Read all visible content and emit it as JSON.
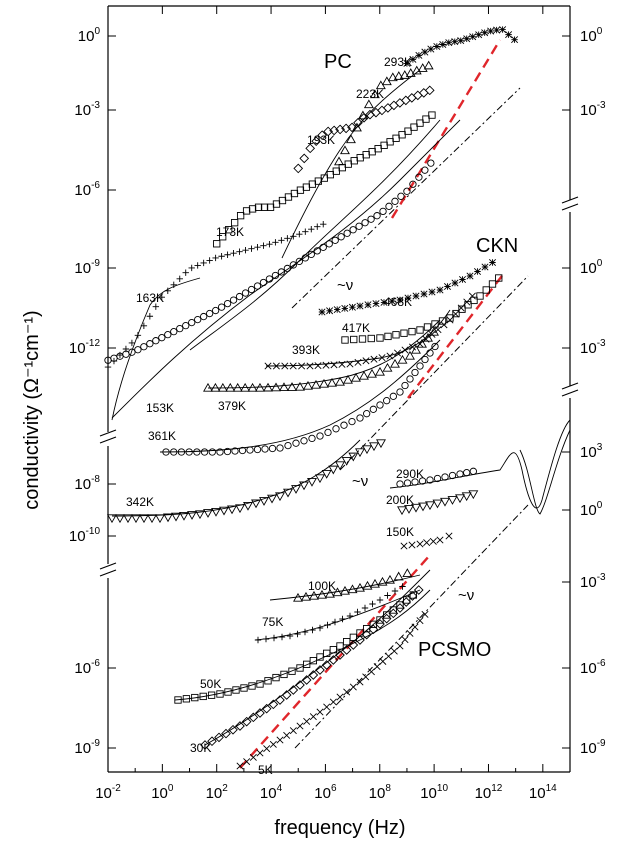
{
  "chart_data": {
    "type": "scatter",
    "xlabel": "frequency (Hz)",
    "ylabel": "conductivity (Ω⁻¹cm⁻¹)",
    "xscale": "log",
    "x_ticks": [
      "10^-2",
      "10^0",
      "10^2",
      "10^4",
      "10^6",
      "10^8",
      "10^10",
      "10^12",
      "10^14"
    ],
    "x_range_log10": [
      -2,
      15
    ],
    "panels": [
      {
        "name": "PC",
        "left_ticks": [
          "10^0",
          "10^-3",
          "10^-6",
          "10^-9",
          "10^-12"
        ],
        "right_ticks": [
          "10^0",
          "10^-3"
        ],
        "series": [
          {
            "name": "163K",
            "marker": "+",
            "x_log": [
              -2,
              -1,
              0,
              1,
              2,
              3,
              4,
              5,
              6
            ],
            "y_log": [
              -14.5,
              -13.3,
              -11.4,
              -10.2,
              -9.7,
              -9.4,
              -9.1,
              -8.7,
              -8.2
            ]
          },
          {
            "name": "153K",
            "marker": "o",
            "x_log": [
              -2,
              -1,
              0,
              1,
              2,
              3,
              4,
              5,
              6,
              7,
              8,
              9,
              10
            ],
            "y_log": [
              -14.2,
              -13.8,
              -13.2,
              -12.6,
              -12.0,
              -11.3,
              -10.6,
              -9.9,
              -9.2,
              -8.5,
              -7.8,
              -6.8,
              -5.4
            ]
          },
          {
            "name": "173K",
            "marker": "square",
            "x_log": [
              2,
              2.5,
              3,
              3.5,
              4,
              5,
              6,
              7,
              8,
              9,
              10
            ],
            "y_log": [
              -9.1,
              -8.4,
              -7.7,
              -7.5,
              -7.5,
              -6.8,
              -6.2,
              -5.5,
              -4.9,
              -4.2,
              -3.4
            ]
          },
          {
            "name": "193K",
            "marker": "diamond",
            "x_log": [
              5,
              5.5,
              6,
              6.5,
              7,
              7.5,
              8,
              9,
              10
            ],
            "y_log": [
              -5.8,
              -4.8,
              -4.2,
              -4.1,
              -4.0,
              -3.5,
              -3.3,
              -2.8,
              -2.3
            ]
          },
          {
            "name": "223K",
            "marker": "triangle",
            "x_log": [
              6.5,
              7,
              7.5,
              8,
              8.5,
              9,
              10
            ],
            "y_log": [
              -5.5,
              -4.4,
              -3.2,
              -2.2,
              -1.8,
              -1.7,
              -1.2
            ]
          },
          {
            "name": "293K",
            "marker": "*",
            "x_log": [
              9,
              9.5,
              10,
              10.5,
              11,
              11.5,
              12,
              12.5,
              13
            ],
            "y_log": [
              -1.2,
              -0.8,
              -0.5,
              -0.3,
              -0.2,
              0,
              0.2,
              0.3,
              -0.2
            ]
          }
        ]
      },
      {
        "name": "CKN",
        "left_ticks": [
          "10^-8",
          "10^-10"
        ],
        "right_ticks": [
          "10^0",
          "10^-3",
          "10^3",
          "10^0"
        ],
        "series": [
          {
            "name": "468K",
            "marker": "*"
          },
          {
            "name": "417K",
            "marker": "square"
          },
          {
            "name": "393K",
            "marker": "x"
          },
          {
            "name": "379K",
            "marker": "triangle"
          },
          {
            "name": "361K",
            "marker": "o"
          },
          {
            "name": "342K",
            "marker": "inverted-triangle"
          }
        ]
      },
      {
        "name": "PCSMO",
        "left_ticks": [
          "10^-6",
          "10^-9"
        ],
        "right_ticks": [
          "10^-3",
          "10^-6",
          "10^-9"
        ],
        "series": [
          {
            "name": "290K",
            "marker": "o"
          },
          {
            "name": "200K",
            "marker": "inverted-triangle"
          },
          {
            "name": "150K",
            "marker": "x"
          },
          {
            "name": "100K",
            "marker": "triangle"
          },
          {
            "name": "75K",
            "marker": "+"
          },
          {
            "name": "50K",
            "marker": "square"
          },
          {
            "name": "30K",
            "marker": "diamond"
          },
          {
            "name": "5K",
            "marker": "x"
          }
        ]
      }
    ],
    "annotations": [
      "~ν",
      "~ν",
      "~ν"
    ],
    "reference_line_color": "#e0262b",
    "grid": false
  }
}
